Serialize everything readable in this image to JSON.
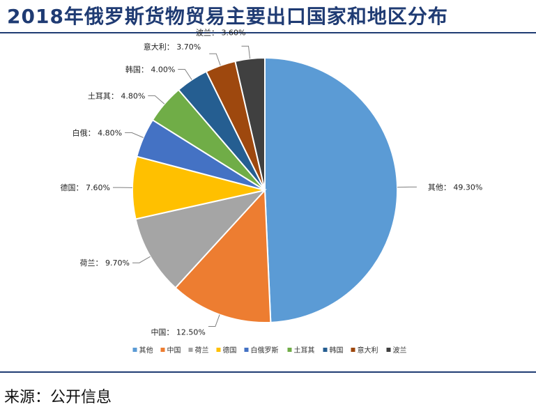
{
  "title": "2018年俄罗斯货物贸易主要出口国家和地区分布",
  "source": "来源：公开信息",
  "chart_data": {
    "type": "pie",
    "label_separator": "：",
    "slices": [
      {
        "name": "其他",
        "value": 49.3,
        "label": "49.30%",
        "color": "#5b9bd5"
      },
      {
        "name": "中国",
        "value": 12.5,
        "label": "12.50%",
        "color": "#ed7d31"
      },
      {
        "name": "荷兰",
        "value": 9.7,
        "label": "9.70%",
        "color": "#a5a5a5"
      },
      {
        "name": "德国",
        "value": 7.6,
        "label": "7.60%",
        "color": "#ffc000"
      },
      {
        "name": "白俄罗斯",
        "legend_name": "白俄罗斯",
        "label_name": "白俄",
        "value": 4.8,
        "label": "4.80%",
        "color": "#4472c4"
      },
      {
        "name": "土耳其",
        "value": 4.8,
        "label": "4.80%",
        "color": "#70ad47"
      },
      {
        "name": "韩国",
        "value": 4.0,
        "label": "4.00%",
        "color": "#255e91"
      },
      {
        "name": "意大利",
        "value": 3.7,
        "label": "3.70%",
        "color": "#9e480e"
      },
      {
        "name": "波兰",
        "value": 3.6,
        "label": "3.60%",
        "color": "#404040"
      }
    ],
    "legend_position": "bottom"
  }
}
